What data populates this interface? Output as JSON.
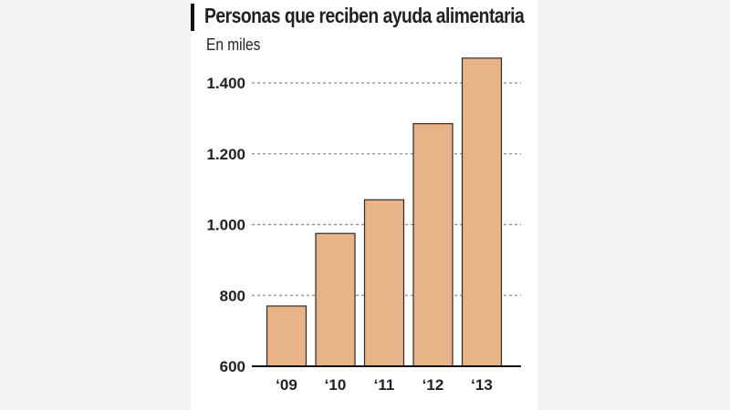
{
  "chart_data": {
    "type": "bar",
    "title": "Personas que reciben ayuda alimentaria",
    "subtitle": "En miles",
    "xlabel": "",
    "ylabel": "",
    "categories": [
      "‘09",
      "‘10",
      "‘11",
      "‘12",
      "‘13"
    ],
    "values": [
      770,
      975,
      1070,
      1285,
      1470
    ],
    "ylim": [
      600,
      1500
    ],
    "yticks": [
      600,
      800,
      1000,
      1200,
      1400
    ],
    "ytick_labels": [
      "600",
      "800",
      "1.000",
      "1.200",
      "1.400"
    ],
    "grid": true,
    "colors": {
      "bar": "#e8b487",
      "bar_edge": "#2a2a2a",
      "grid": "#8a8a8a",
      "text": "#222222"
    }
  }
}
